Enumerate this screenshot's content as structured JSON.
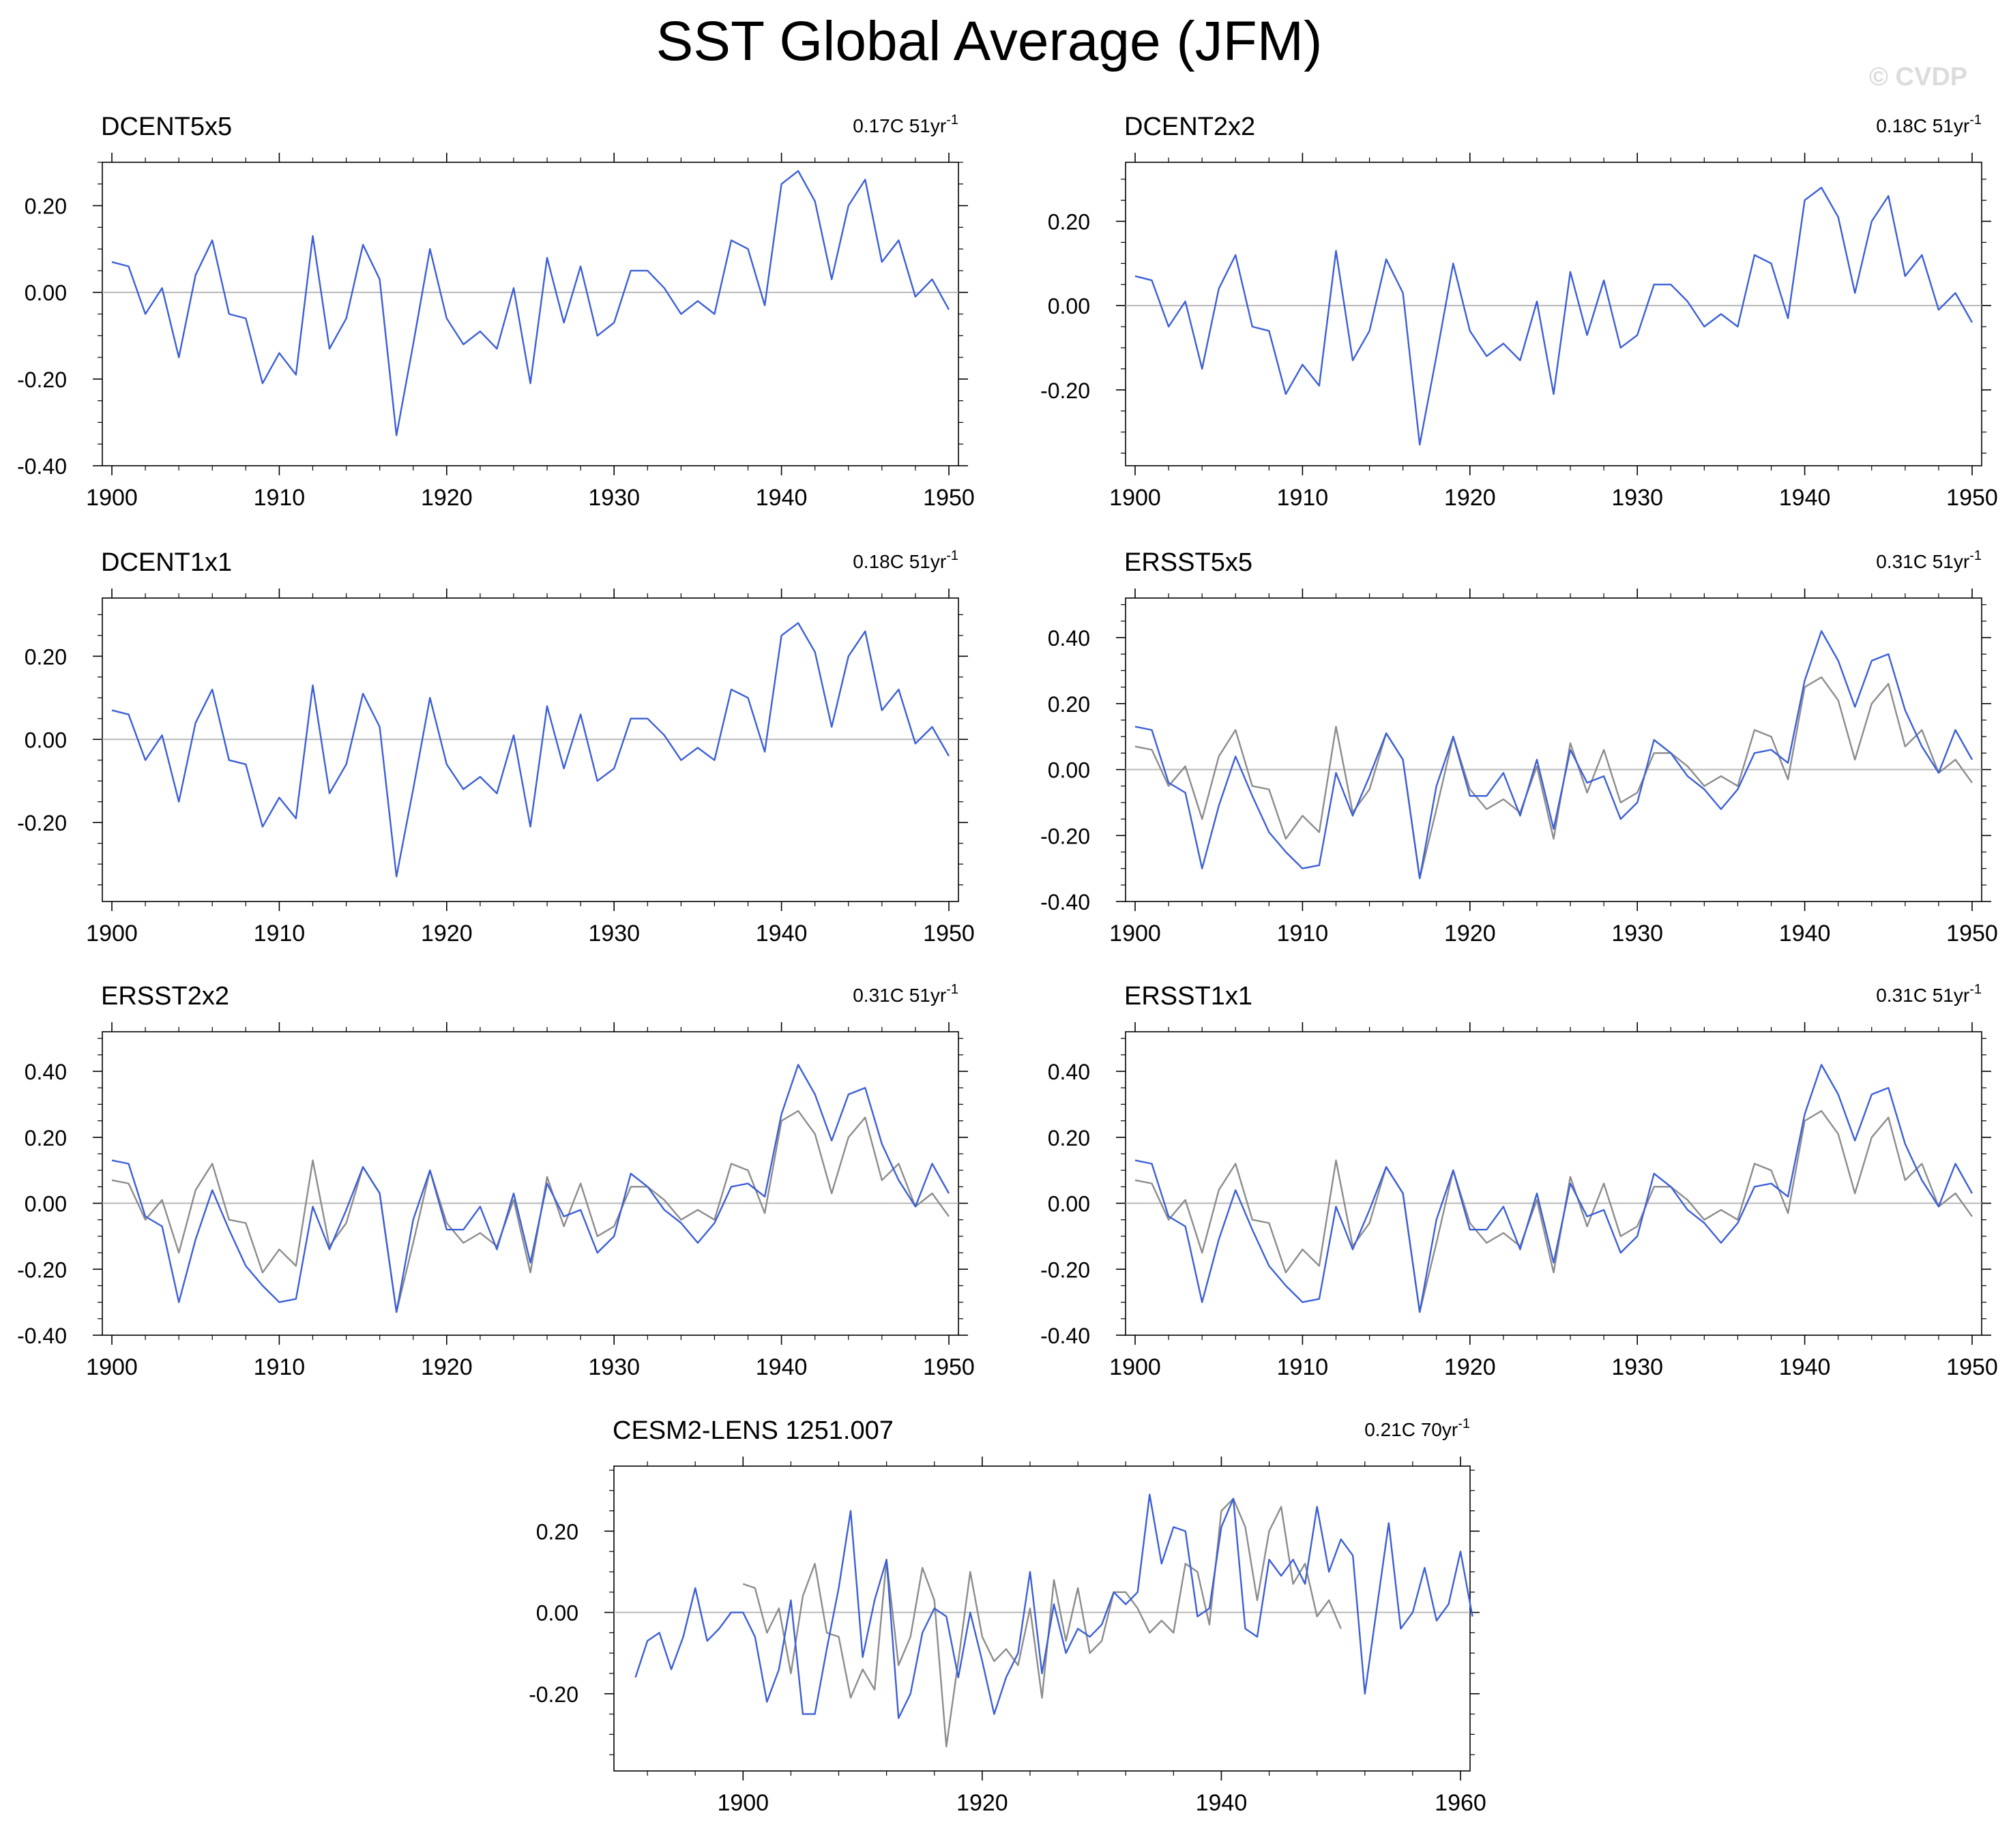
{
  "title": "SST Global Average (JFM)",
  "watermark": "© CVDP",
  "colors": {
    "model_line": "#3b5fd6",
    "reference_line": "#8c8c8c",
    "zero_line": "#b8b8b8",
    "axis": "#000000"
  },
  "chart_data": [
    {
      "type": "line",
      "title": "DCENT5x5",
      "trend": "0.17C 51yr",
      "trend_superscript": "-1",
      "xlim": [
        1900,
        1950
      ],
      "ylim": [
        -0.4,
        0.3
      ],
      "xticks": [
        "1900",
        "1910",
        "1920",
        "1930",
        "1940",
        "1950"
      ],
      "yticks": [
        "0.20",
        "0.00",
        "-0.20",
        "-0.40"
      ],
      "series": [
        {
          "name": "DCENT5x5",
          "x_start": 1900,
          "values": [
            0.07,
            0.06,
            -0.05,
            0.01,
            -0.15,
            0.04,
            0.12,
            -0.05,
            -0.06,
            -0.21,
            -0.14,
            -0.19,
            0.13,
            -0.13,
            -0.06,
            0.11,
            0.03,
            -0.33,
            -0.12,
            0.1,
            -0.06,
            -0.12,
            -0.09,
            -0.13,
            0.01,
            -0.21,
            0.08,
            -0.07,
            0.06,
            -0.1,
            -0.07,
            0.05,
            0.05,
            0.01,
            -0.05,
            -0.02,
            -0.05,
            0.12,
            0.1,
            -0.03,
            0.25,
            0.28,
            0.21,
            0.03,
            0.2,
            0.26,
            0.07,
            0.12,
            -0.01,
            0.03,
            -0.04
          ]
        }
      ]
    },
    {
      "type": "line",
      "title": "DCENT2x2",
      "trend": "0.18C 51yr",
      "trend_superscript": "-1",
      "xlim": [
        1900,
        1950
      ],
      "ylim": [
        -0.38,
        0.34
      ],
      "xticks": [
        "1900",
        "1910",
        "1920",
        "1930",
        "1940",
        "1950"
      ],
      "yticks": [
        "0.20",
        "0.00",
        "-0.20"
      ],
      "series": [
        {
          "name": "DCENT2x2",
          "x_start": 1900,
          "values": [
            0.07,
            0.06,
            -0.05,
            0.01,
            -0.15,
            0.04,
            0.12,
            -0.05,
            -0.06,
            -0.21,
            -0.14,
            -0.19,
            0.13,
            -0.13,
            -0.06,
            0.11,
            0.03,
            -0.33,
            -0.12,
            0.1,
            -0.06,
            -0.12,
            -0.09,
            -0.13,
            0.01,
            -0.21,
            0.08,
            -0.07,
            0.06,
            -0.1,
            -0.07,
            0.05,
            0.05,
            0.01,
            -0.05,
            -0.02,
            -0.05,
            0.12,
            0.1,
            -0.03,
            0.25,
            0.28,
            0.21,
            0.03,
            0.2,
            0.26,
            0.07,
            0.12,
            -0.01,
            0.03,
            -0.04
          ]
        }
      ]
    },
    {
      "type": "line",
      "title": "DCENT1x1",
      "trend": "0.18C 51yr",
      "trend_superscript": "-1",
      "xlim": [
        1900,
        1950
      ],
      "ylim": [
        -0.39,
        0.34
      ],
      "xticks": [
        "1900",
        "1910",
        "1920",
        "1930",
        "1940",
        "1950"
      ],
      "yticks": [
        "0.20",
        "0.00",
        "-0.20"
      ],
      "series": [
        {
          "name": "DCENT1x1",
          "x_start": 1900,
          "values": [
            0.07,
            0.06,
            -0.05,
            0.01,
            -0.15,
            0.04,
            0.12,
            -0.05,
            -0.06,
            -0.21,
            -0.14,
            -0.19,
            0.13,
            -0.13,
            -0.06,
            0.11,
            0.03,
            -0.33,
            -0.12,
            0.1,
            -0.06,
            -0.12,
            -0.09,
            -0.13,
            0.01,
            -0.21,
            0.08,
            -0.07,
            0.06,
            -0.1,
            -0.07,
            0.05,
            0.05,
            0.01,
            -0.05,
            -0.02,
            -0.05,
            0.12,
            0.1,
            -0.03,
            0.25,
            0.28,
            0.21,
            0.03,
            0.2,
            0.26,
            0.07,
            0.12,
            -0.01,
            0.03,
            -0.04
          ]
        }
      ]
    },
    {
      "type": "line",
      "title": "ERSST5x5",
      "trend": "0.31C 51yr",
      "trend_superscript": "-1",
      "xlim": [
        1900,
        1950
      ],
      "ylim": [
        -0.4,
        0.52
      ],
      "xticks": [
        "1900",
        "1910",
        "1920",
        "1930",
        "1940",
        "1950"
      ],
      "yticks": [
        "0.40",
        "0.20",
        "0.00",
        "-0.20",
        "-0.40"
      ],
      "series": [
        {
          "name": "reference",
          "x_start": 1900,
          "values": [
            0.07,
            0.06,
            -0.05,
            0.01,
            -0.15,
            0.04,
            0.12,
            -0.05,
            -0.06,
            -0.21,
            -0.14,
            -0.19,
            0.13,
            -0.13,
            -0.06,
            0.11,
            0.03,
            -0.33,
            -0.12,
            0.1,
            -0.06,
            -0.12,
            -0.09,
            -0.13,
            0.01,
            -0.21,
            0.08,
            -0.07,
            0.06,
            -0.1,
            -0.07,
            0.05,
            0.05,
            0.01,
            -0.05,
            -0.02,
            -0.05,
            0.12,
            0.1,
            -0.03,
            0.25,
            0.28,
            0.21,
            0.03,
            0.2,
            0.26,
            0.07,
            0.12,
            -0.01,
            0.03,
            -0.04
          ]
        },
        {
          "name": "ERSST5x5",
          "x_start": 1900,
          "values": [
            0.13,
            0.12,
            -0.04,
            -0.07,
            -0.3,
            -0.11,
            0.04,
            -0.08,
            -0.19,
            -0.25,
            -0.3,
            -0.29,
            -0.01,
            -0.14,
            -0.02,
            0.11,
            0.03,
            -0.33,
            -0.05,
            0.1,
            -0.08,
            -0.08,
            -0.01,
            -0.14,
            0.03,
            -0.18,
            0.06,
            -0.04,
            -0.02,
            -0.15,
            -0.1,
            0.09,
            0.05,
            -0.02,
            -0.06,
            -0.12,
            -0.06,
            0.05,
            0.06,
            0.02,
            0.27,
            0.42,
            0.33,
            0.19,
            0.33,
            0.35,
            0.18,
            0.07,
            -0.01,
            0.12,
            0.03
          ]
        }
      ]
    },
    {
      "type": "line",
      "title": "ERSST2x2",
      "trend": "0.31C 51yr",
      "trend_superscript": "-1",
      "xlim": [
        1900,
        1950
      ],
      "ylim": [
        -0.4,
        0.52
      ],
      "xticks": [
        "1900",
        "1910",
        "1920",
        "1930",
        "1940",
        "1950"
      ],
      "yticks": [
        "0.40",
        "0.20",
        "0.00",
        "-0.20",
        "-0.40"
      ],
      "series": [
        {
          "name": "reference",
          "x_start": 1900,
          "values": [
            0.07,
            0.06,
            -0.05,
            0.01,
            -0.15,
            0.04,
            0.12,
            -0.05,
            -0.06,
            -0.21,
            -0.14,
            -0.19,
            0.13,
            -0.13,
            -0.06,
            0.11,
            0.03,
            -0.33,
            -0.12,
            0.1,
            -0.06,
            -0.12,
            -0.09,
            -0.13,
            0.01,
            -0.21,
            0.08,
            -0.07,
            0.06,
            -0.1,
            -0.07,
            0.05,
            0.05,
            0.01,
            -0.05,
            -0.02,
            -0.05,
            0.12,
            0.1,
            -0.03,
            0.25,
            0.28,
            0.21,
            0.03,
            0.2,
            0.26,
            0.07,
            0.12,
            -0.01,
            0.03,
            -0.04
          ]
        },
        {
          "name": "ERSST2x2",
          "x_start": 1900,
          "values": [
            0.13,
            0.12,
            -0.04,
            -0.07,
            -0.3,
            -0.11,
            0.04,
            -0.08,
            -0.19,
            -0.25,
            -0.3,
            -0.29,
            -0.01,
            -0.14,
            -0.02,
            0.11,
            0.03,
            -0.33,
            -0.05,
            0.1,
            -0.08,
            -0.08,
            -0.01,
            -0.14,
            0.03,
            -0.18,
            0.06,
            -0.04,
            -0.02,
            -0.15,
            -0.1,
            0.09,
            0.05,
            -0.02,
            -0.06,
            -0.12,
            -0.06,
            0.05,
            0.06,
            0.02,
            0.27,
            0.42,
            0.33,
            0.19,
            0.33,
            0.35,
            0.18,
            0.07,
            -0.01,
            0.12,
            0.03
          ]
        }
      ]
    },
    {
      "type": "line",
      "title": "ERSST1x1",
      "trend": "0.31C 51yr",
      "trend_superscript": "-1",
      "xlim": [
        1900,
        1950
      ],
      "ylim": [
        -0.4,
        0.52
      ],
      "xticks": [
        "1900",
        "1910",
        "1920",
        "1930",
        "1940",
        "1950"
      ],
      "yticks": [
        "0.40",
        "0.20",
        "0.00",
        "-0.20",
        "-0.40"
      ],
      "series": [
        {
          "name": "reference",
          "x_start": 1900,
          "values": [
            0.07,
            0.06,
            -0.05,
            0.01,
            -0.15,
            0.04,
            0.12,
            -0.05,
            -0.06,
            -0.21,
            -0.14,
            -0.19,
            0.13,
            -0.13,
            -0.06,
            0.11,
            0.03,
            -0.33,
            -0.12,
            0.1,
            -0.06,
            -0.12,
            -0.09,
            -0.13,
            0.01,
            -0.21,
            0.08,
            -0.07,
            0.06,
            -0.1,
            -0.07,
            0.05,
            0.05,
            0.01,
            -0.05,
            -0.02,
            -0.05,
            0.12,
            0.1,
            -0.03,
            0.25,
            0.28,
            0.21,
            0.03,
            0.2,
            0.26,
            0.07,
            0.12,
            -0.01,
            0.03,
            -0.04
          ]
        },
        {
          "name": "ERSST1x1",
          "x_start": 1900,
          "values": [
            0.13,
            0.12,
            -0.04,
            -0.07,
            -0.3,
            -0.11,
            0.04,
            -0.08,
            -0.19,
            -0.25,
            -0.3,
            -0.29,
            -0.01,
            -0.14,
            -0.02,
            0.11,
            0.03,
            -0.33,
            -0.05,
            0.1,
            -0.08,
            -0.08,
            -0.01,
            -0.14,
            0.03,
            -0.18,
            0.06,
            -0.04,
            -0.02,
            -0.15,
            -0.1,
            0.09,
            0.05,
            -0.02,
            -0.06,
            -0.12,
            -0.06,
            0.05,
            0.06,
            0.02,
            0.27,
            0.42,
            0.33,
            0.19,
            0.33,
            0.35,
            0.18,
            0.07,
            -0.01,
            0.12,
            0.03
          ]
        }
      ]
    },
    {
      "type": "line",
      "title": "CESM2-LENS 1251.007",
      "trend": "0.21C 70yr",
      "trend_superscript": "-1",
      "xlim": [
        1890,
        1960
      ],
      "ylim": [
        -0.39,
        0.36
      ],
      "xticks": [
        "1900",
        "1920",
        "1940",
        "1960"
      ],
      "xtick_values": [
        1900,
        1920,
        1940,
        1960
      ],
      "yticks": [
        "0.20",
        "0.00",
        "-0.20"
      ],
      "series": [
        {
          "name": "reference",
          "x_start": 1900,
          "values": [
            0.07,
            0.06,
            -0.05,
            0.01,
            -0.15,
            0.04,
            0.12,
            -0.05,
            -0.06,
            -0.21,
            -0.14,
            -0.19,
            0.13,
            -0.13,
            -0.06,
            0.11,
            0.03,
            -0.33,
            -0.12,
            0.1,
            -0.06,
            -0.12,
            -0.09,
            -0.13,
            0.01,
            -0.21,
            0.08,
            -0.07,
            0.06,
            -0.1,
            -0.07,
            0.05,
            0.05,
            0.01,
            -0.05,
            -0.02,
            -0.05,
            0.12,
            0.1,
            -0.03,
            0.25,
            0.28,
            0.21,
            0.03,
            0.2,
            0.26,
            0.07,
            0.12,
            -0.01,
            0.03,
            -0.04
          ]
        },
        {
          "name": "CESM2-LENS 1251.007",
          "x_start": 1891,
          "values": [
            -0.16,
            -0.07,
            -0.05,
            -0.14,
            -0.06,
            0.06,
            -0.07,
            -0.04,
            0.0,
            0.0,
            -0.06,
            -0.22,
            -0.14,
            0.03,
            -0.25,
            -0.25,
            -0.09,
            0.06,
            0.25,
            -0.11,
            0.03,
            0.13,
            -0.26,
            -0.2,
            -0.05,
            0.01,
            -0.01,
            -0.16,
            0.0,
            -0.12,
            -0.25,
            -0.16,
            -0.1,
            0.1,
            -0.15,
            0.02,
            -0.1,
            -0.04,
            -0.06,
            -0.03,
            0.05,
            0.02,
            0.05,
            0.29,
            0.12,
            0.21,
            0.2,
            -0.01,
            0.01,
            0.21,
            0.28,
            -0.04,
            -0.06,
            0.13,
            0.09,
            0.13,
            0.07,
            0.26,
            0.1,
            0.18,
            0.14,
            -0.2,
            0.01,
            0.22,
            -0.04,
            0.0,
            0.11,
            -0.02,
            0.02,
            0.15,
            -0.01
          ]
        }
      ]
    }
  ]
}
